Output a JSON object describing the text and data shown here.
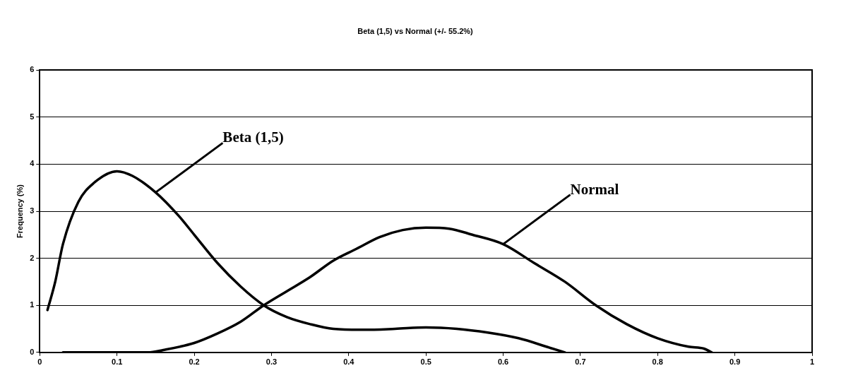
{
  "chart_data": {
    "type": "line",
    "title": "Beta (1,5) vs Normal (+/- 55.2%)",
    "ylabel": "Frequency (%)",
    "xlim": [
      0,
      1
    ],
    "xticks": [
      0,
      0.1,
      0.2,
      0.3,
      0.4,
      0.5,
      0.6,
      0.7,
      0.8,
      0.9,
      1
    ],
    "ylim": [
      0,
      6
    ],
    "yticks": [
      0,
      1,
      2,
      3,
      4,
      5,
      6
    ],
    "grid": "y",
    "legend": false,
    "marker": "none",
    "line_style": "solid",
    "series": [
      {
        "name": "Beta (1,5)",
        "color": "#000000",
        "x": [
          0.01,
          0.02,
          0.03,
          0.05,
          0.07,
          0.1,
          0.12,
          0.15,
          0.18,
          0.2,
          0.23,
          0.26,
          0.29,
          0.32,
          0.35,
          0.38,
          0.42,
          0.46,
          0.5,
          0.54,
          0.58,
          0.62,
          0.66,
          0.68
        ],
        "values": [
          0.9,
          1.5,
          2.3,
          3.2,
          3.6,
          3.85,
          3.75,
          3.4,
          2.9,
          2.5,
          1.9,
          1.4,
          1.0,
          0.75,
          0.6,
          0.5,
          0.48,
          0.5,
          0.53,
          0.5,
          0.42,
          0.3,
          0.1,
          0
        ]
      },
      {
        "name": "Normal",
        "color": "#000000",
        "x": [
          0.03,
          0.1,
          0.14,
          0.16,
          0.2,
          0.23,
          0.26,
          0.29,
          0.32,
          0.35,
          0.38,
          0.41,
          0.44,
          0.47,
          0.5,
          0.53,
          0.56,
          0.6,
          0.64,
          0.68,
          0.72,
          0.76,
          0.8,
          0.84,
          0.86,
          0.87
        ],
        "values": [
          0,
          0,
          0,
          0.05,
          0.2,
          0.4,
          0.65,
          1.0,
          1.3,
          1.6,
          1.95,
          2.2,
          2.45,
          2.6,
          2.65,
          2.63,
          2.5,
          2.3,
          1.9,
          1.5,
          1.0,
          0.6,
          0.3,
          0.12,
          0.08,
          0
        ]
      }
    ]
  }
}
